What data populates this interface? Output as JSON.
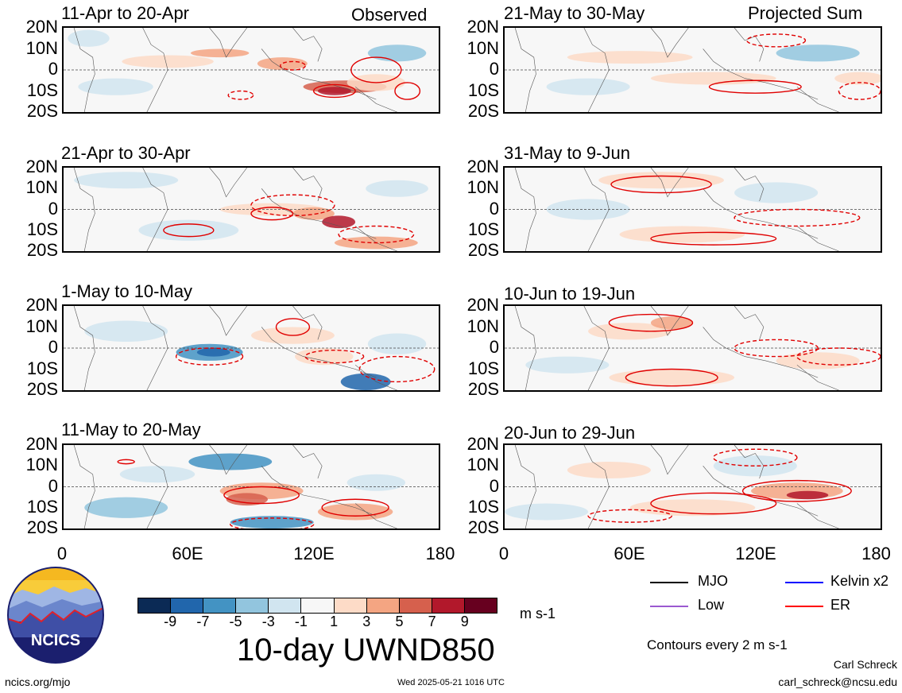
{
  "header": {
    "observed": "Observed",
    "projected": "Projected Sum"
  },
  "lat_labels": [
    "20N",
    "10N",
    "0",
    "10S",
    "20S"
  ],
  "lon_labels": [
    "0",
    "60E",
    "120E",
    "180"
  ],
  "panels": [
    {
      "title": "11-Apr to 20-Apr",
      "kind": "obs1"
    },
    {
      "title": "21-Apr to 30-Apr",
      "kind": "obs2"
    },
    {
      "title": "1-May to 10-May",
      "kind": "obs3"
    },
    {
      "title": "11-May to 20-May",
      "kind": "obs4"
    },
    {
      "title": "21-May to 30-May",
      "kind": "proj1"
    },
    {
      "title": "31-May to 9-Jun",
      "kind": "proj2"
    },
    {
      "title": "10-Jun to 19-Jun",
      "kind": "proj3"
    },
    {
      "title": "20-Jun to 29-Jun",
      "kind": "proj4"
    }
  ],
  "colorbar": {
    "labels": [
      "-9",
      "-7",
      "-5",
      "-3",
      "-1",
      "1",
      "3",
      "5",
      "7",
      "9"
    ],
    "colors": [
      "#0b2a55",
      "#2166ac",
      "#4393c3",
      "#92c5de",
      "#d1e5f0",
      "#f7f7f7",
      "#fddbc7",
      "#f4a582",
      "#d6604d",
      "#b2182b",
      "#67001f"
    ],
    "unit": "m s-1",
    "title": "10-day UWND850"
  },
  "legend": {
    "items": [
      {
        "label": "MJO",
        "color": "#000000"
      },
      {
        "label": "Kelvin x2",
        "color": "#0000ff"
      },
      {
        "label": "Low",
        "color": "#9b59d0"
      },
      {
        "label": "ER",
        "color": "#ff0000"
      }
    ],
    "note": "Contours every 2 m s-1"
  },
  "logo": {
    "text": "NCICS"
  },
  "footer": {
    "url": "ncics.org/mjo",
    "timestamp": "Wed 2025-05-21 1016 UTC",
    "author": "Carl Schreck",
    "email": "carl_schreck@ncsu.edu"
  },
  "chart_data": {
    "type": "heatmap",
    "title": "10-day UWND850",
    "unit": "m s-1",
    "x_range": [
      0,
      180
    ],
    "y_range": [
      -20,
      20
    ],
    "contour_interval": "Contours every 2 m s-1",
    "legend_position": "bottom-right",
    "color_levels": [
      -9,
      -7,
      -5,
      -3,
      -1,
      1,
      3,
      5,
      7,
      9
    ]
  }
}
